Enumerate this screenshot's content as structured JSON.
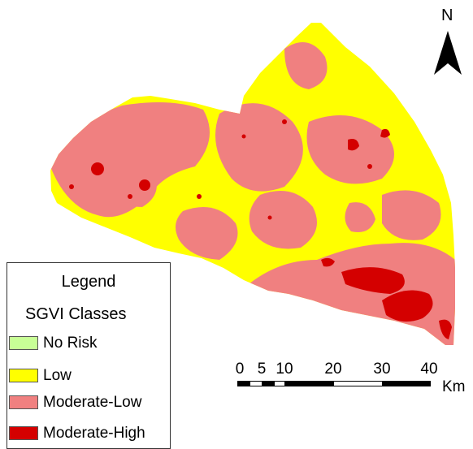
{
  "north_arrow": {
    "label": "N"
  },
  "legend": {
    "title": "Legend",
    "subtitle": "SGVI Classes",
    "items": [
      {
        "label": "No Risk",
        "color": "#c8ff96"
      },
      {
        "label": "Low",
        "color": "#ffff00"
      },
      {
        "label": "Moderate-Low",
        "color": "#f08080"
      },
      {
        "label": "Moderate-High",
        "color": "#d40000"
      }
    ]
  },
  "scalebar": {
    "ticks": [
      "0",
      "5",
      "10",
      "20",
      "30",
      "40"
    ],
    "unit": "Km"
  },
  "colors": {
    "low": "#ffff00",
    "moderate_low": "#f08080",
    "moderate_high": "#d40000",
    "no_risk": "#c8ff96"
  }
}
